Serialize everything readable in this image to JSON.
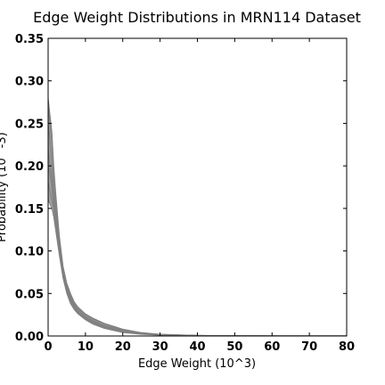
{
  "chart_data": {
    "type": "line",
    "title": "Edge Weight Distributions in MRN114 Dataset",
    "xlabel": "Edge Weight (10^3)",
    "ylabel": "Probability (10^-3)",
    "xlim": [
      0,
      80
    ],
    "ylim": [
      0,
      0.35
    ],
    "grid": false,
    "legend": "none",
    "x_ticks": [
      "0",
      "10",
      "20",
      "30",
      "40",
      "50",
      "60",
      "70",
      "80"
    ],
    "y_ticks": [
      "0.00",
      "0.05",
      "0.10",
      "0.15",
      "0.20",
      "0.25",
      "0.30",
      "0.35"
    ],
    "series_color": "#808080",
    "series_count": 114,
    "band": {
      "x": [
        0,
        0.5,
        1,
        1.5,
        2,
        3,
        4,
        5,
        6,
        7,
        8,
        10,
        12,
        15,
        20,
        25,
        30,
        40,
        50,
        60,
        70,
        80
      ],
      "lower": [
        0.16,
        0.155,
        0.15,
        0.14,
        0.125,
        0.095,
        0.068,
        0.05,
        0.038,
        0.031,
        0.026,
        0.019,
        0.014,
        0.009,
        0.004,
        0.002,
        0.001,
        0.0003,
        0.0001,
        0.0,
        0.0,
        0.0
      ],
      "upper": [
        0.28,
        0.26,
        0.24,
        0.2,
        0.17,
        0.118,
        0.082,
        0.062,
        0.05,
        0.04,
        0.034,
        0.026,
        0.021,
        0.015,
        0.008,
        0.004,
        0.002,
        0.0007,
        0.0002,
        0.0001,
        0.0,
        0.0
      ]
    },
    "series": [
      {
        "x": [
          0,
          0.5,
          1,
          1.5,
          2,
          3,
          4,
          5,
          6,
          7,
          8,
          10,
          12,
          15,
          20,
          25,
          30,
          40,
          50,
          60,
          70,
          80
        ],
        "values": [
          0.22,
          0.2,
          0.185,
          0.165,
          0.145,
          0.105,
          0.075,
          0.056,
          0.044,
          0.036,
          0.03,
          0.022,
          0.017,
          0.012,
          0.006,
          0.003,
          0.0015,
          0.0005,
          0.0001,
          0.0,
          0.0,
          0.0
        ]
      },
      {
        "x": [
          0,
          0.5,
          1,
          1.5,
          2,
          3,
          4,
          5,
          6,
          7,
          8,
          10,
          12,
          15,
          20,
          25,
          30,
          40,
          50,
          60,
          70,
          80
        ],
        "values": [
          0.25,
          0.23,
          0.2,
          0.17,
          0.15,
          0.11,
          0.078,
          0.058,
          0.046,
          0.037,
          0.031,
          0.023,
          0.018,
          0.012,
          0.006,
          0.003,
          0.0015,
          0.0005,
          0.0001,
          0.0,
          0.0,
          0.0
        ]
      },
      {
        "x": [
          0,
          0.5,
          1,
          1.5,
          2,
          3,
          4,
          5,
          6,
          7,
          8,
          10,
          12,
          15,
          20,
          25,
          30,
          40,
          50,
          60,
          70,
          80
        ],
        "values": [
          0.18,
          0.17,
          0.16,
          0.15,
          0.13,
          0.1,
          0.072,
          0.054,
          0.042,
          0.034,
          0.028,
          0.021,
          0.016,
          0.011,
          0.0055,
          0.0028,
          0.0014,
          0.0004,
          0.0001,
          0.0,
          0.0,
          0.0
        ]
      },
      {
        "x": [
          0,
          0.5,
          1,
          1.5,
          2,
          3,
          4,
          5,
          6,
          7,
          8,
          10,
          12,
          15,
          20,
          25,
          30,
          40,
          50,
          60,
          70,
          80
        ],
        "values": [
          0.27,
          0.25,
          0.23,
          0.19,
          0.16,
          0.114,
          0.08,
          0.06,
          0.048,
          0.039,
          0.033,
          0.025,
          0.02,
          0.014,
          0.007,
          0.0035,
          0.0018,
          0.0006,
          0.0002,
          0.0,
          0.0,
          0.0
        ]
      },
      {
        "x": [
          0,
          0.5,
          1,
          1.5,
          2,
          3,
          4,
          5,
          6,
          7,
          8,
          10,
          12,
          15,
          20,
          25,
          30,
          40,
          50,
          60,
          70,
          80
        ],
        "values": [
          0.2,
          0.19,
          0.175,
          0.155,
          0.138,
          0.1,
          0.07,
          0.052,
          0.041,
          0.033,
          0.027,
          0.02,
          0.015,
          0.01,
          0.005,
          0.0025,
          0.0012,
          0.0004,
          0.0001,
          0.0,
          0.0,
          0.0
        ]
      }
    ]
  }
}
